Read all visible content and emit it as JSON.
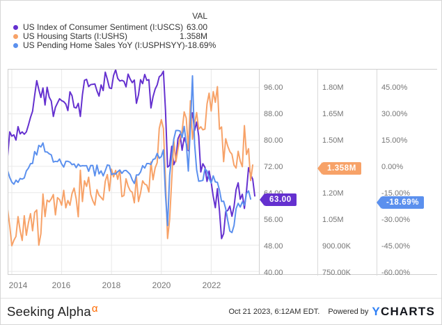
{
  "legend": {
    "val_header": "VAL",
    "series": [
      {
        "label": "US Index of Consumer Sentiment (I:USCS)",
        "value": "63.00"
      },
      {
        "label": "US Housing Starts (I:USHS)",
        "value": "1.358M"
      },
      {
        "label": "US Pending Home Sales YoY (I:USPHSYY)",
        "value": "-18.69%"
      }
    ]
  },
  "chart_data": {
    "type": "line",
    "grid": true,
    "legend_position": "top-left",
    "x_axis": {
      "start": "2013-11",
      "interval": "monthly",
      "end": "2023-10",
      "ticks": [
        {
          "label": "2014",
          "year": 2014
        },
        {
          "label": "2016",
          "year": 2016
        },
        {
          "label": "2018",
          "year": 2018
        },
        {
          "label": "2020",
          "year": 2020
        },
        {
          "label": "2022",
          "year": 2022
        }
      ]
    },
    "series": [
      {
        "name": "US Index of Consumer Sentiment",
        "ticker": "I:USCS",
        "color": "#6430cf",
        "callout": {
          "label": "63.00",
          "value": 63.0
        },
        "axis": {
          "side": "right",
          "column": 1,
          "top_tick_value": 96,
          "bottom_tick_value": 40,
          "ticks": [
            {
              "label": "96.00",
              "value": 96
            },
            {
              "label": "88.00",
              "value": 88
            },
            {
              "label": "80.00",
              "value": 80
            },
            {
              "label": "72.00",
              "value": 72
            },
            {
              "label": "64.00",
              "value": 64
            },
            {
              "label": "56.00",
              "value": 56
            },
            {
              "label": "48.00",
              "value": 48
            },
            {
              "label": "40.00",
              "value": 40
            }
          ]
        },
        "values": [
          75.1,
          82.5,
          81.2,
          81.6,
          80.0,
          84.1,
          81.9,
          82.5,
          81.8,
          82.5,
          84.6,
          86.9,
          88.8,
          93.6,
          98.1,
          95.4,
          93.0,
          95.9,
          90.7,
          96.1,
          93.1,
          91.9,
          87.2,
          90.0,
          91.3,
          92.6,
          92.0,
          91.7,
          91.0,
          89.0,
          94.7,
          93.5,
          90.0,
          89.8,
          91.2,
          87.2,
          93.8,
          98.2,
          98.5,
          96.3,
          96.9,
          97.0,
          97.1,
          95.0,
          93.4,
          96.8,
          95.1,
          100.7,
          98.5,
          95.9,
          95.7,
          99.7,
          101.4,
          98.8,
          98.0,
          98.2,
          97.9,
          96.2,
          100.1,
          98.6,
          97.5,
          98.3,
          91.2,
          93.8,
          98.4,
          97.2,
          100.0,
          98.2,
          98.4,
          89.8,
          93.2,
          95.5,
          96.8,
          99.3,
          99.8,
          101.0,
          89.1,
          71.8,
          72.3,
          78.1,
          72.5,
          74.1,
          80.4,
          81.8,
          76.9,
          80.7,
          79.0,
          76.8,
          84.9,
          88.3,
          82.9,
          85.5,
          81.2,
          70.3,
          72.8,
          71.7,
          67.4,
          70.6,
          67.2,
          62.8,
          59.4,
          65.2,
          58.4,
          50.0,
          51.5,
          58.2,
          58.6,
          59.9,
          56.8,
          59.7,
          64.9,
          67.0,
          62.0,
          63.5,
          59.2,
          64.4,
          71.6,
          69.5,
          68.1,
          63.0
        ]
      },
      {
        "name": "US Housing Starts",
        "ticker": "I:USHS",
        "color": "#f7a268",
        "callout": {
          "label": "1.358M",
          "value": 1.358
        },
        "axis": {
          "side": "right",
          "column": 2,
          "top_tick_value": 1.8,
          "bottom_tick_value": 0.75,
          "ticks": [
            {
              "label": "1.80M",
              "value": 1.8
            },
            {
              "label": "1.65M",
              "value": 1.65
            },
            {
              "label": "1.50M",
              "value": 1.5
            },
            {
              "label": "1.20M",
              "value": 1.2
            },
            {
              "label": "1.05M",
              "value": 1.05
            },
            {
              "label": "900.00K",
              "value": 0.9
            },
            {
              "label": "750.00K",
              "value": 0.75
            }
          ]
        },
        "values": [
          1.105,
          1.01,
          0.897,
          0.928,
          0.95,
          1.063,
          0.984,
          0.927,
          1.068,
          0.957,
          1.028,
          1.08,
          0.982,
          1.087,
          1.101,
          0.9,
          0.965,
          1.192,
          1.063,
          1.157,
          1.147,
          1.164,
          1.189,
          1.073,
          1.171,
          1.16,
          1.128,
          1.213,
          1.113,
          1.155,
          1.128,
          1.195,
          1.226,
          1.164,
          1.062,
          1.328,
          1.149,
          1.268,
          1.236,
          1.288,
          1.189,
          1.154,
          1.129,
          1.217,
          1.185,
          1.172,
          1.158,
          1.265,
          1.303,
          1.21,
          1.334,
          1.29,
          1.327,
          1.276,
          1.329,
          1.177,
          1.184,
          1.279,
          1.237,
          1.211,
          1.202,
          1.142,
          1.291,
          1.149,
          1.199,
          1.267,
          1.249,
          1.243,
          1.204,
          1.375,
          1.274,
          1.34,
          1.371,
          1.567,
          1.617,
          1.567,
          1.269,
          0.938,
          1.046,
          1.273,
          1.497,
          1.376,
          1.448,
          1.514,
          1.551,
          1.661,
          1.625,
          1.447,
          1.725,
          1.505,
          1.594,
          1.657,
          1.562,
          1.576,
          1.559,
          1.563,
          1.706,
          1.768,
          1.666,
          1.777,
          1.716,
          1.805,
          1.562,
          1.575,
          1.377,
          1.508,
          1.465,
          1.434,
          1.419,
          1.357,
          1.34,
          1.436,
          1.38,
          1.348,
          1.583,
          1.418,
          1.451,
          1.269,
          1.358
        ]
      },
      {
        "name": "US Pending Home Sales YoY",
        "ticker": "I:USPHSYY",
        "color": "#5b90ee",
        "callout": {
          "label": "-18.69%",
          "value": -18.69
        },
        "axis": {
          "side": "right",
          "column": 3,
          "top_tick_value": 45,
          "bottom_tick_value": -60,
          "ticks": [
            {
              "label": "45.00%",
              "value": 45
            },
            {
              "label": "30.00%",
              "value": 30
            },
            {
              "label": "15.00%",
              "value": 15
            },
            {
              "label": "0.00%",
              "value": 0
            },
            {
              "label": "-15.00%",
              "value": -15
            },
            {
              "label": "-30.00%",
              "value": -30
            },
            {
              "label": "-45.00%",
              "value": -45
            },
            {
              "label": "-60.00%",
              "value": -60
            }
          ]
        },
        "values": [
          -2.5,
          -6.3,
          -9.0,
          -10.2,
          -7.9,
          -9.1,
          -6.9,
          -7.3,
          -6.6,
          -2.6,
          -1.0,
          1.5,
          1.7,
          8.5,
          6.5,
          12.0,
          11.1,
          13.4,
          8.3,
          8.2,
          7.2,
          6.6,
          2.5,
          2.9,
          2.7,
          4.2,
          1.4,
          -0.4,
          2.9,
          2.9,
          2.4,
          1.0,
          1.4,
          -0.7,
          1.3,
          0.1,
          0.4,
          0.3,
          0.4,
          -2.8,
          0.5,
          0.5,
          -5.4,
          0.7,
          -4.3,
          -2.6,
          -5.4,
          -2.5,
          0.8,
          0.5,
          -4.7,
          -4.1,
          -4.4,
          -3.0,
          -2.1,
          -4.0,
          -2.5,
          -2.3,
          -3.4,
          -4.6,
          -7.7,
          -9.8,
          -4.9,
          -4.9,
          -3.2,
          0.4,
          -1.0,
          1.6,
          1.6,
          1.1,
          3.9,
          4.4,
          7.4,
          4.6,
          5.6,
          9.4,
          -16.3,
          -33.8,
          -5.1,
          6.3,
          15.5,
          20.5,
          20.5,
          20.2,
          16.4,
          22.8,
          13.0,
          -2.7,
          23.3,
          51.7,
          13.1,
          -1.9,
          -8.5,
          -8.3,
          -8.0,
          -1.4,
          -2.7,
          -6.9,
          -9.5,
          -5.4,
          -8.9,
          -9.1,
          -13.6,
          -20.0,
          -19.9,
          -24.2,
          -31.0,
          -37.0,
          -37.8,
          -33.8,
          -24.1,
          -21.1,
          -23.2,
          -20.3,
          -22.2,
          -15.6,
          -14.0,
          -18.69
        ]
      }
    ]
  },
  "footer": {
    "brand": "Seeking Alpha",
    "brand_sup": "α",
    "timestamp": "Oct 21 2023, 6:12AM EDT.",
    "powered_by": "Powered by",
    "ycharts_y": "Y",
    "ycharts_rest": "CHARTS"
  }
}
